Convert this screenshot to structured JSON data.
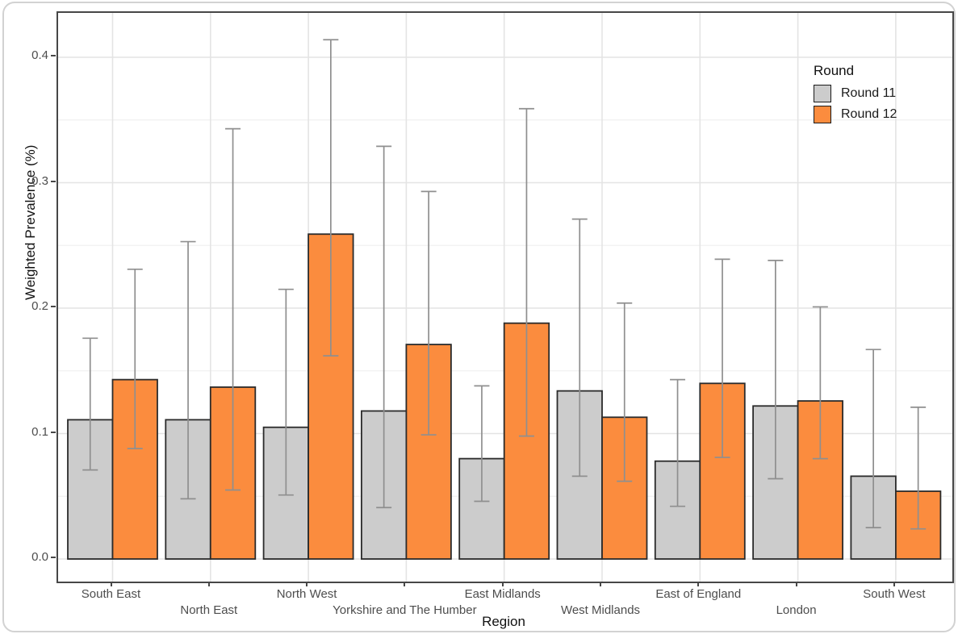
{
  "figure": {
    "x_axis_title": "Region",
    "y_axis_title": "Weighted Prevalence (%)",
    "legend_title": "Round"
  },
  "chart_data": {
    "type": "bar",
    "title": "",
    "xlabel": "Region",
    "ylabel": "Weighted Prevalence (%)",
    "categories": [
      "South East",
      "North East",
      "North West",
      "Yorkshire and The Humber",
      "East Midlands",
      "West Midlands",
      "East of England",
      "London",
      "South West"
    ],
    "series": [
      {
        "name": "Round 11",
        "color": "#CCCCCC",
        "values": [
          0.111,
          0.111,
          0.105,
          0.118,
          0.08,
          0.134,
          0.078,
          0.122,
          0.066
        ],
        "ci_low": [
          0.071,
          0.048,
          0.051,
          0.041,
          0.046,
          0.066,
          0.042,
          0.064,
          0.025
        ],
        "ci_high": [
          0.176,
          0.253,
          0.215,
          0.329,
          0.138,
          0.271,
          0.143,
          0.238,
          0.167
        ]
      },
      {
        "name": "Round 12",
        "color": "#FB8C3E",
        "values": [
          0.143,
          0.137,
          0.259,
          0.171,
          0.188,
          0.113,
          0.14,
          0.126,
          0.054
        ],
        "ci_low": [
          0.088,
          0.055,
          0.162,
          0.099,
          0.098,
          0.062,
          0.081,
          0.08,
          0.024
        ],
        "ci_high": [
          0.231,
          0.343,
          0.414,
          0.293,
          0.359,
          0.204,
          0.239,
          0.201,
          0.121
        ]
      }
    ],
    "ylim": [
      0,
      0.4
    ],
    "yticks": [
      0.0,
      0.1,
      0.2,
      0.3,
      0.4
    ],
    "ytick_labels": [
      "0.0",
      "0.1",
      "0.2",
      "0.3",
      "0.4"
    ],
    "minor_yticks": [
      0.05,
      0.15,
      0.25,
      0.35
    ],
    "grid": true,
    "error_bars": true,
    "legend_title": "Round",
    "legend_position": "top-right-inside",
    "bar_edge_color": "#2b2b2b",
    "error_bar_color": "#8f8f8f",
    "grid_major_color": "#e4e4e4",
    "grid_minor_color": "#f0f0f0",
    "label_rows": [
      0,
      1,
      0,
      1,
      0,
      1,
      0,
      1,
      0
    ]
  }
}
